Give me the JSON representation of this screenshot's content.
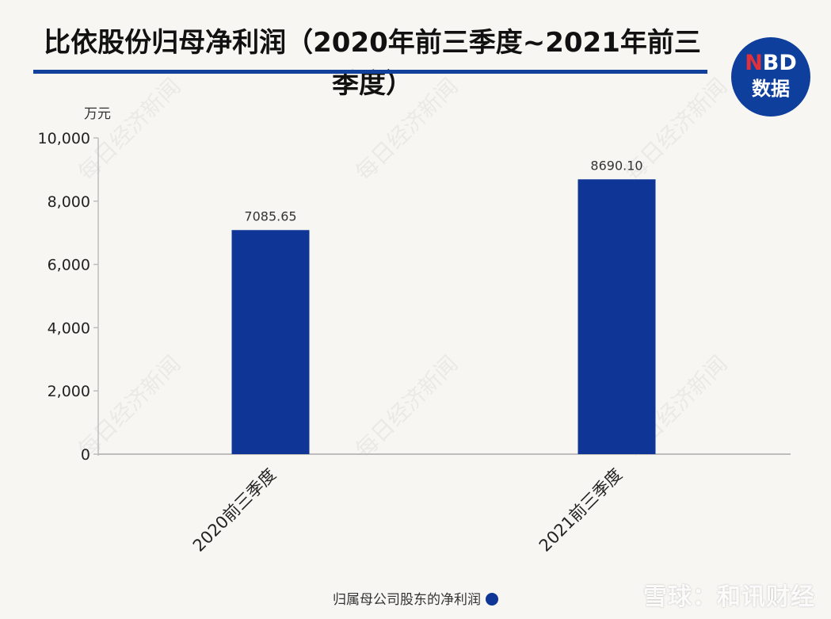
{
  "title": "比依股份归母净利润（2020年前三季度~2021年前三季度）",
  "logo": {
    "line1_accent": "N",
    "line1_rest": "BD",
    "line2": "数据"
  },
  "unit": "万元",
  "watermark": "每日经济新闻",
  "corner_watermark": "雪球：和讯财经",
  "colors": {
    "bar": "#0f3596",
    "rule": "#12419b",
    "axis": "#bdbdbd"
  },
  "chart_data": {
    "type": "bar",
    "title": "比依股份归母净利润（2020年前三季度~2021年前三季度）",
    "categories": [
      "2020前三季度",
      "2021前三季度"
    ],
    "series": [
      {
        "name": "归属母公司股东的净利润",
        "values": [
          7085.65,
          8690.1
        ]
      }
    ],
    "data_labels": [
      "7085.65",
      "8690.10"
    ],
    "ylabel": "万元",
    "xlabel": "",
    "ylim": [
      0,
      10000
    ],
    "yticks": [
      0,
      2000,
      4000,
      6000,
      8000,
      10000
    ],
    "ytick_labels": [
      "0",
      "2,000",
      "4,000",
      "6,000",
      "8,000",
      "10,000"
    ],
    "grid": false,
    "legend_position": "bottom"
  }
}
